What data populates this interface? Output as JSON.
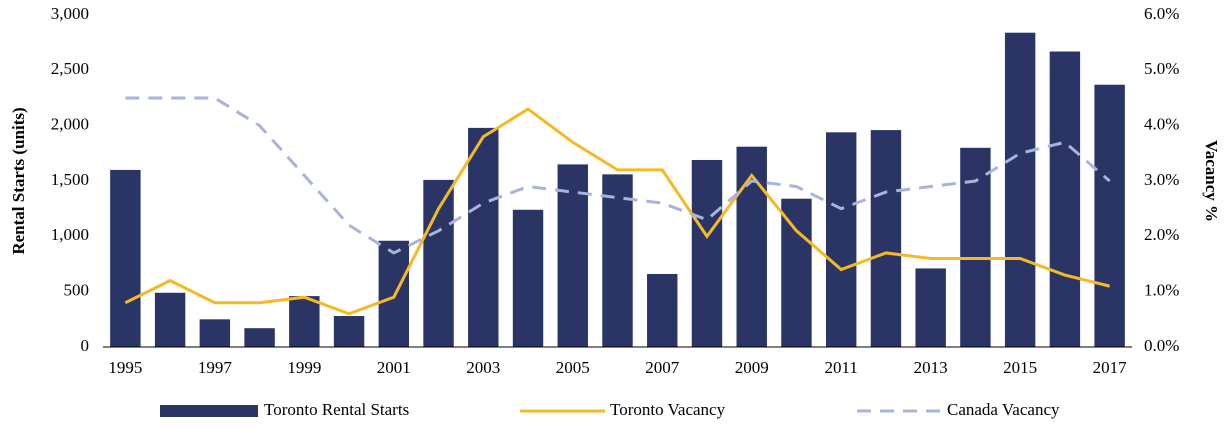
{
  "chart_data": {
    "type": "bar",
    "categories": [
      "1995",
      null,
      "1997",
      null,
      "1999",
      null,
      "2001",
      null,
      "2003",
      null,
      "2005",
      null,
      "2007",
      null,
      "2009",
      null,
      "2011",
      null,
      "2013",
      null,
      "2015",
      null,
      "2017"
    ],
    "series": [
      {
        "name": "Toronto Rental Starts",
        "type": "bar",
        "color": "#2a3566",
        "values": [
          1600,
          490,
          250,
          170,
          460,
          280,
          960,
          1510,
          1980,
          1240,
          1650,
          1560,
          660,
          1690,
          1810,
          1340,
          1940,
          1960,
          710,
          1800,
          2840,
          2670,
          2370
        ]
      },
      {
        "name": "Toronto Vacancy",
        "type": "line",
        "axis": "y2",
        "color": "#f5b925",
        "style": "solid",
        "values": [
          0.8,
          1.2,
          0.8,
          0.8,
          0.9,
          0.6,
          0.9,
          2.5,
          3.8,
          4.3,
          3.7,
          3.2,
          3.2,
          2.0,
          3.1,
          2.1,
          1.4,
          1.7,
          1.6,
          1.6,
          1.6,
          1.3,
          1.1
        ]
      },
      {
        "name": "Canada Vacancy",
        "type": "line",
        "axis": "y2",
        "color": "#a9b4db",
        "style": "dashed",
        "values": [
          4.5,
          4.5,
          4.5,
          4.0,
          3.1,
          2.2,
          1.7,
          2.1,
          2.6,
          2.9,
          2.8,
          2.7,
          2.6,
          2.3,
          3.0,
          2.9,
          2.5,
          2.8,
          2.9,
          3.0,
          3.5,
          3.7,
          3.0
        ]
      }
    ],
    "ylabel": "Rental Starts (units)",
    "y2label": "Vacancy %",
    "ylim": [
      0,
      3000
    ],
    "yticks": [
      0,
      500,
      {
        "value": 1000,
        "label": "1,000"
      },
      {
        "value": 1500,
        "label": "1,500"
      },
      {
        "value": 2000,
        "label": "2,000"
      },
      {
        "value": 2500,
        "label": "2,500"
      },
      {
        "value": 3000,
        "label": "3,000"
      }
    ],
    "y2lim": [
      0,
      6
    ],
    "y2ticks": [
      {
        "value": 0,
        "label": "0.0%"
      },
      {
        "value": 1,
        "label": "1.0%"
      },
      {
        "value": 2,
        "label": "2.0%"
      },
      {
        "value": 3,
        "label": "3.0%"
      },
      {
        "value": 4,
        "label": "4.0%"
      },
      {
        "value": 5,
        "label": "5.0%"
      },
      {
        "value": 6,
        "label": "6.0%"
      }
    ],
    "legend": "bottom",
    "grid": false
  }
}
